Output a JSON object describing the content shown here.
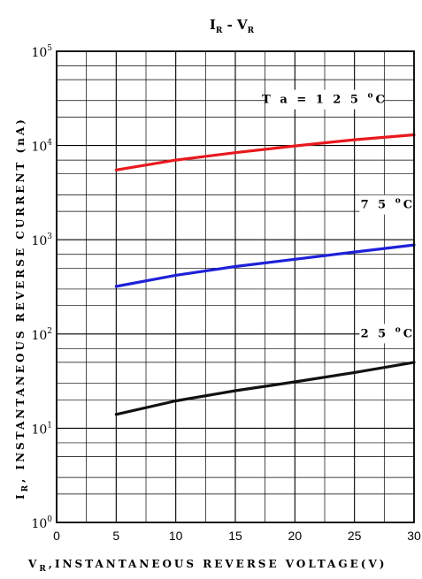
{
  "chart_data": {
    "type": "line",
    "title": {
      "main": "I",
      "sub": "R",
      "sep": " - ",
      "main2": "V",
      "sub2": "R"
    },
    "xlabel": {
      "sym": "V",
      "sub": "R",
      "text": ",INSTANTANEOUS REVERSE VOLTAGE(V)"
    },
    "ylabel": {
      "sym": "I",
      "sub": "R",
      "text": ", INSTANTANEOUS REVERSE CURRENT (nA)"
    },
    "xlim": [
      0,
      30
    ],
    "ylim": [
      1,
      100000
    ],
    "yscale": "log",
    "grid": true,
    "x_ticks": [
      "0",
      "5",
      "10",
      "15",
      "20",
      "25",
      "30"
    ],
    "y_ticks": [
      {
        "base": "10",
        "exp": "0"
      },
      {
        "base": "10",
        "exp": "1"
      },
      {
        "base": "10",
        "exp": "2"
      },
      {
        "base": "10",
        "exp": "3"
      },
      {
        "base": "10",
        "exp": "4"
      },
      {
        "base": "10",
        "exp": "5"
      }
    ],
    "series": [
      {
        "name": "Ta = 125°C",
        "label_parts": [
          "T a = 1 2 5",
          "o",
          "C"
        ],
        "color": "#e8191f",
        "x": [
          5,
          10,
          15,
          20,
          25,
          30
        ],
        "y": [
          5500,
          7000,
          8400,
          9900,
          11500,
          13000
        ]
      },
      {
        "name": "75°C",
        "label_parts": [
          "7 5",
          "o",
          "C"
        ],
        "color": "#1f21d8",
        "x": [
          5,
          10,
          15,
          20,
          25,
          30
        ],
        "y": [
          320,
          420,
          520,
          620,
          740,
          880
        ]
      },
      {
        "name": "25°C",
        "label_parts": [
          "2 5",
          "o",
          "C"
        ],
        "color": "#111111",
        "x": [
          5,
          10,
          15,
          20,
          25,
          30
        ],
        "y": [
          14,
          19.5,
          25,
          31,
          39,
          50
        ]
      }
    ]
  }
}
